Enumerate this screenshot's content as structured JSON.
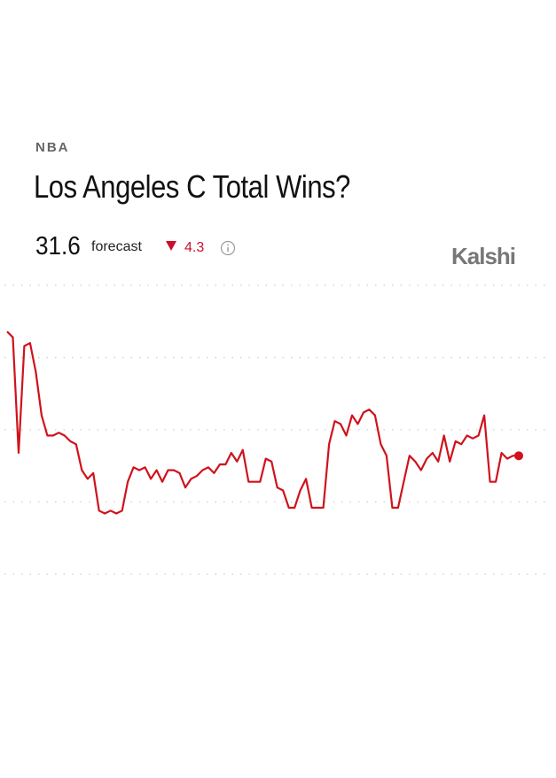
{
  "league": "NBA",
  "brand": "Kalshi",
  "forecast": {
    "value": "31.6",
    "label": "forecast",
    "change": "4.3"
  },
  "chart_data": {
    "type": "line",
    "title": "Los Angeles C Total Wins?",
    "color": "#d0121b",
    "ylim": [
      27.5,
      37.5
    ],
    "grid_lines": [
      27.5,
      30,
      32.5,
      35,
      37.5
    ],
    "values": [
      35.9,
      35.7,
      31.7,
      35.4,
      35.5,
      34.5,
      33.0,
      32.3,
      32.3,
      32.4,
      32.3,
      32.1,
      32.0,
      31.1,
      30.8,
      31.0,
      29.7,
      29.6,
      29.7,
      29.6,
      29.7,
      30.7,
      31.2,
      31.1,
      31.2,
      30.8,
      31.1,
      30.7,
      31.1,
      31.1,
      31.0,
      30.5,
      30.8,
      30.9,
      31.1,
      31.2,
      31.0,
      31.3,
      31.3,
      31.7,
      31.4,
      31.8,
      30.7,
      30.7,
      30.7,
      31.5,
      31.4,
      30.5,
      30.4,
      29.8,
      29.8,
      30.4,
      30.8,
      29.8,
      29.8,
      29.8,
      32.0,
      32.8,
      32.7,
      32.3,
      33.0,
      32.7,
      33.1,
      33.2,
      33.0,
      32.0,
      31.6,
      29.8,
      29.8,
      30.7,
      31.6,
      31.4,
      31.1,
      31.5,
      31.7,
      31.4,
      32.3,
      31.4,
      32.1,
      32.0,
      32.3,
      32.2,
      32.3,
      33.0,
      30.7,
      30.7,
      31.7,
      31.5,
      31.6,
      31.6
    ]
  }
}
